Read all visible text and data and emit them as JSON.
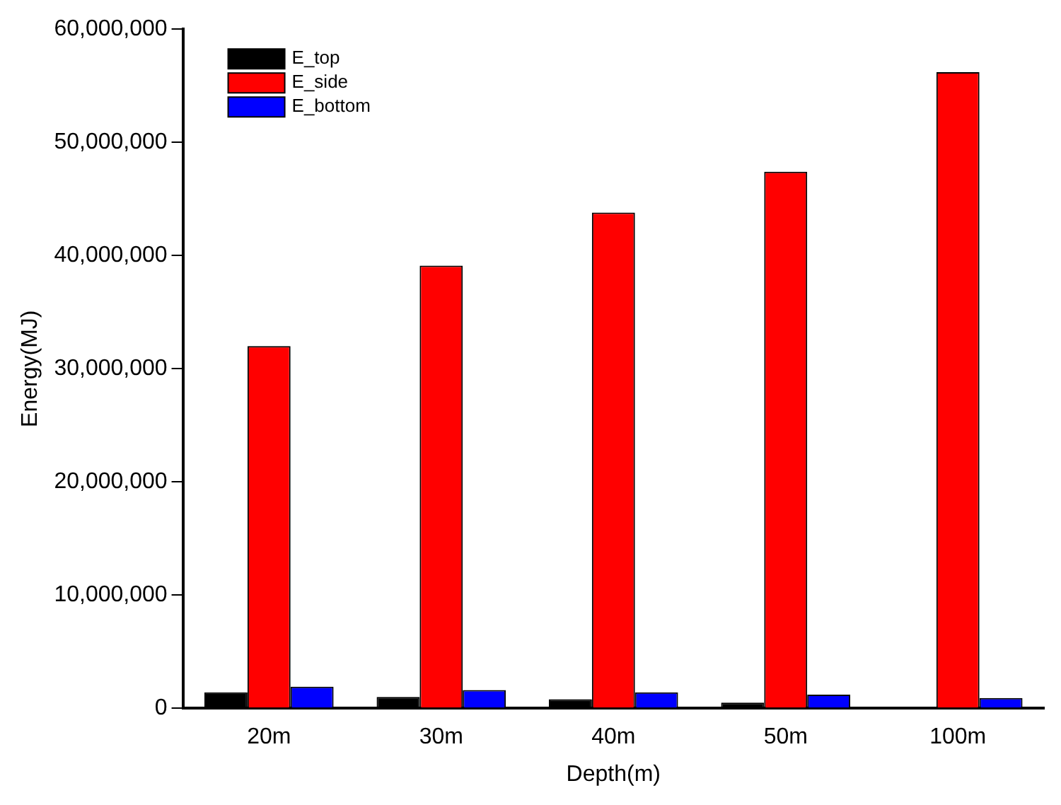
{
  "chart_data": {
    "type": "bar",
    "xlabel": "Depth(m)",
    "ylabel": "Energy(MJ)",
    "categories": [
      "20m",
      "30m",
      "40m",
      "50m",
      "100m"
    ],
    "series": [
      {
        "name": "E_top",
        "color": "#000000",
        "values": [
          1400000,
          1000000,
          800000,
          500000,
          null
        ]
      },
      {
        "name": "E_side",
        "color": "#ff0000",
        "values": [
          32000000,
          39100000,
          43800000,
          47400000,
          56200000
        ]
      },
      {
        "name": "E_bottom",
        "color": "#0000ff",
        "values": [
          1900000,
          1600000,
          1400000,
          1200000,
          900000
        ]
      }
    ],
    "ylim": [
      0,
      60000000
    ],
    "yticks": [
      {
        "value": 0,
        "label": "0"
      },
      {
        "value": 10000000,
        "label": "10,000,000"
      },
      {
        "value": 20000000,
        "label": "20,000,000"
      },
      {
        "value": 30000000,
        "label": "30,000,000"
      },
      {
        "value": 40000000,
        "label": "40,000,000"
      },
      {
        "value": 50000000,
        "label": "50,000,000"
      },
      {
        "value": 60000000,
        "label": "60,000,000"
      }
    ],
    "grid": false,
    "legend": "top left"
  }
}
